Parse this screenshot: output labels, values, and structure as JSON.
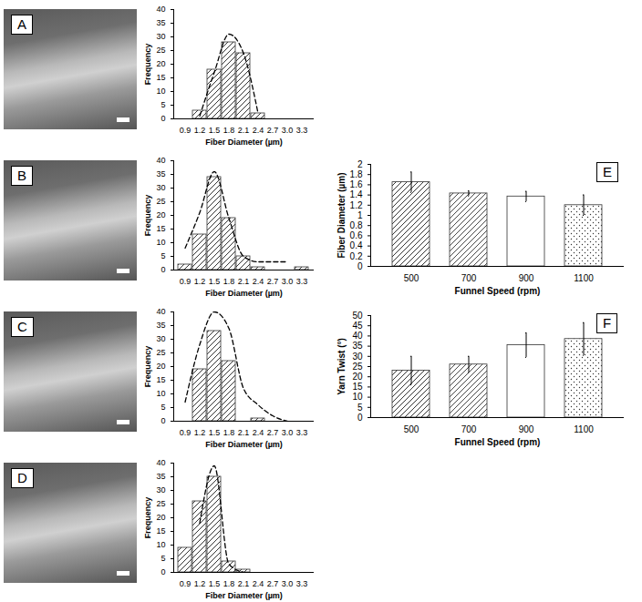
{
  "chart_data": [
    {
      "type": "bar",
      "title": "A",
      "categories": [
        "0.9",
        "1.2",
        "1.5",
        "1.8",
        "2.1",
        "2.4",
        "2.7",
        "3.0",
        "3.3"
      ],
      "values": [
        0,
        3,
        18,
        28,
        24,
        2,
        0,
        0,
        0
      ],
      "color": "#333333",
      "series": [
        {
          "type": "line",
          "line_style": "dashed",
          "color": "#000000",
          "values": [
            null,
            1,
            17,
            31,
            24,
            2,
            null,
            null,
            null
          ]
        }
      ],
      "xlabel": "Fiber Diameter (µm)",
      "ylabel": "Frequency",
      "ylim": [
        0,
        40
      ],
      "yticks": [
        0,
        5,
        10,
        15,
        20,
        25,
        30,
        35,
        40
      ]
    },
    {
      "type": "bar",
      "title": "B",
      "categories": [
        "0.9",
        "1.2",
        "1.5",
        "1.8",
        "2.1",
        "2.4",
        "2.7",
        "3.0",
        "3.3"
      ],
      "values": [
        2,
        13,
        34,
        19,
        5,
        1,
        0,
        0,
        1
      ],
      "color": "#333333",
      "series": [
        {
          "type": "line",
          "line_style": "dashed",
          "color": "#000000",
          "values": [
            8,
            21,
            36,
            19,
            5,
            3,
            3,
            3,
            null
          ]
        }
      ],
      "xlabel": "Fiber Diameter (µm)",
      "ylabel": "Frequency",
      "ylim": [
        0,
        40
      ],
      "yticks": [
        0,
        5,
        10,
        15,
        20,
        25,
        30,
        35,
        40
      ]
    },
    {
      "type": "bar",
      "title": "C",
      "categories": [
        "0.9",
        "1.2",
        "1.5",
        "1.8",
        "2.1",
        "2.4",
        "2.7",
        "3.0",
        "3.3"
      ],
      "values": [
        0,
        19,
        33,
        22,
        0,
        1,
        0,
        0,
        0
      ],
      "color": "#333333",
      "series": [
        {
          "type": "line",
          "line_style": "dashed",
          "color": "#000000",
          "values": [
            7,
            28,
            40,
            34,
            12,
            6,
            2,
            0,
            null
          ]
        }
      ],
      "xlabel": "Fiber Diameter (µm)",
      "ylabel": "Frequency",
      "ylim": [
        0,
        40
      ],
      "yticks": [
        0,
        5,
        10,
        15,
        20,
        25,
        30,
        35,
        40
      ]
    },
    {
      "type": "bar",
      "title": "D",
      "categories": [
        "0.9",
        "1.2",
        "1.5",
        "1.8",
        "2.1",
        "2.4",
        "2.7",
        "3.0",
        "3.3"
      ],
      "values": [
        9,
        26,
        35,
        4,
        1,
        0,
        0,
        0,
        0
      ],
      "color": "#333333",
      "series": [
        {
          "type": "line",
          "line_style": "dashed",
          "color": "#000000",
          "values": [
            null,
            18,
            39,
            3,
            0,
            null,
            null,
            null,
            null
          ]
        }
      ],
      "xlabel": "Fiber Diameter (µm)",
      "ylabel": "Frequency",
      "ylim": [
        0,
        40
      ],
      "yticks": [
        0,
        5,
        10,
        15,
        20,
        25,
        30,
        35,
        40
      ]
    },
    {
      "type": "bar",
      "title": "E",
      "categories": [
        "500",
        "700",
        "900",
        "1100"
      ],
      "values": [
        1.65,
        1.43,
        1.37,
        1.2
      ],
      "errors": [
        0.2,
        0.05,
        0.1,
        0.2
      ],
      "color": "#333333",
      "xlabel": "Funnel Speed (rpm)",
      "ylabel": "Fiber Diameter (µm)",
      "ylim": [
        0,
        2
      ],
      "yticks": [
        0,
        0.2,
        0.4,
        0.6,
        0.8,
        1,
        1.2,
        1.4,
        1.6,
        1.8,
        2
      ]
    },
    {
      "type": "bar",
      "title": "F",
      "categories": [
        "500",
        "700",
        "900",
        "1100"
      ],
      "values": [
        23,
        26,
        35.5,
        38.5
      ],
      "errors": [
        7,
        4,
        6,
        8
      ],
      "color": "#333333",
      "xlabel": "Funnel Speed (rpm)",
      "ylabel": "Yarn Twist (°)",
      "ylim": [
        0,
        50
      ],
      "yticks": [
        0,
        5,
        10,
        15,
        20,
        25,
        30,
        35,
        40,
        45,
        50
      ]
    }
  ]
}
